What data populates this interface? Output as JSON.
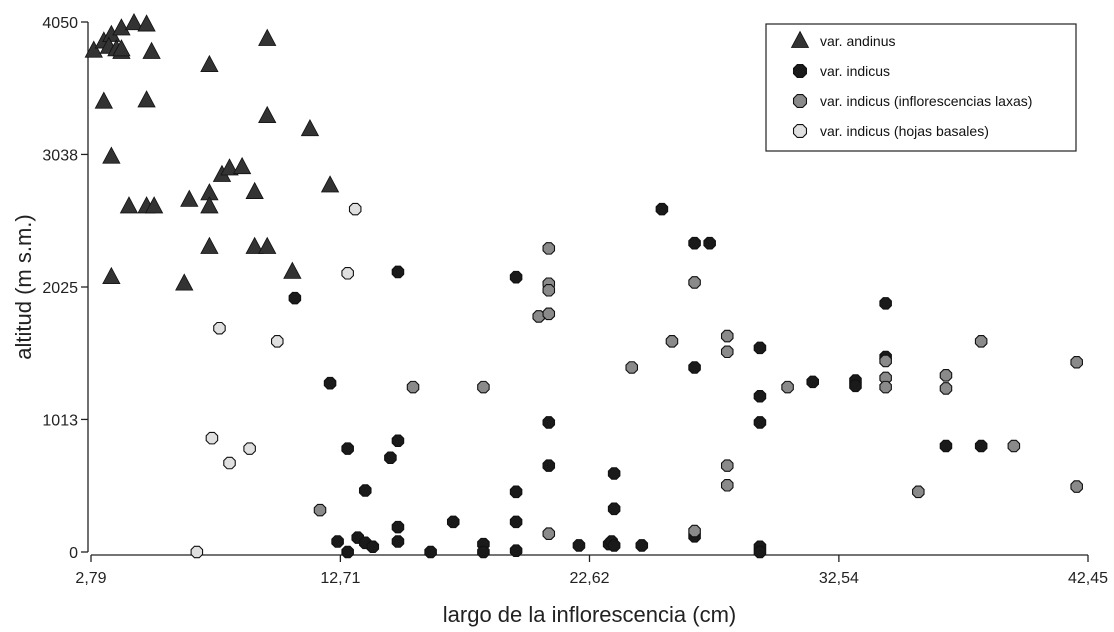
{
  "chart_data": {
    "type": "scatter",
    "xlabel": "largo de la inflorescencia (cm)",
    "ylabel": "altitud (m s.m.)",
    "xlim": [
      2.79,
      42.45
    ],
    "ylim": [
      0,
      4050
    ],
    "xticks": [
      "2,79",
      "12,71",
      "22,62",
      "32,54",
      "42,45"
    ],
    "xtick_values": [
      2.79,
      12.71,
      22.62,
      32.54,
      42.45
    ],
    "yticks": [
      "0",
      "1013",
      "2025",
      "3038",
      "4050"
    ],
    "ytick_values": [
      0,
      1013,
      2025,
      3038,
      4050
    ],
    "grid": false,
    "legend_position": "top-right",
    "series": [
      {
        "name": "var. andinus",
        "marker": "triangle",
        "color": "#333333",
        "points": [
          [
            2.9,
            3830
          ],
          [
            3.3,
            3900
          ],
          [
            3.6,
            3950
          ],
          [
            4.0,
            4000
          ],
          [
            4.5,
            4040
          ],
          [
            3.5,
            3860
          ],
          [
            3.8,
            3840
          ],
          [
            4.0,
            3820
          ],
          [
            4.0,
            3840
          ],
          [
            5.0,
            4030
          ],
          [
            5.2,
            3820
          ],
          [
            7.5,
            3720
          ],
          [
            9.8,
            3920
          ],
          [
            3.3,
            3440
          ],
          [
            5.0,
            3450
          ],
          [
            3.6,
            3020
          ],
          [
            4.3,
            2640
          ],
          [
            5.0,
            2640
          ],
          [
            5.3,
            2640
          ],
          [
            6.7,
            2690
          ],
          [
            7.5,
            2740
          ],
          [
            7.5,
            2640
          ],
          [
            8.0,
            2880
          ],
          [
            8.3,
            2930
          ],
          [
            8.8,
            2940
          ],
          [
            9.3,
            2750
          ],
          [
            9.8,
            3330
          ],
          [
            11.5,
            3230
          ],
          [
            12.3,
            2800
          ],
          [
            7.5,
            2330
          ],
          [
            9.3,
            2330
          ],
          [
            9.8,
            2330
          ],
          [
            3.6,
            2100
          ],
          [
            6.5,
            2050
          ],
          [
            10.8,
            2140
          ]
        ]
      },
      {
        "name": "var. indicus",
        "marker": "octagon",
        "color": "#1a1a1a",
        "points": [
          [
            10.9,
            1940
          ],
          [
            12.3,
            1290
          ],
          [
            15.0,
            2140
          ],
          [
            19.7,
            2100
          ],
          [
            13.0,
            790
          ],
          [
            13.7,
            470
          ],
          [
            14.7,
            720
          ],
          [
            15.0,
            850
          ],
          [
            12.6,
            80
          ],
          [
            13.0,
            0
          ],
          [
            13.4,
            110
          ],
          [
            13.7,
            70
          ],
          [
            14.0,
            40
          ],
          [
            15.0,
            80
          ],
          [
            15.0,
            190
          ],
          [
            16.3,
            0
          ],
          [
            17.2,
            230
          ],
          [
            18.4,
            60
          ],
          [
            18.4,
            0
          ],
          [
            19.7,
            230
          ],
          [
            19.7,
            460
          ],
          [
            19.7,
            10
          ],
          [
            21.0,
            990
          ],
          [
            21.0,
            660
          ],
          [
            22.2,
            50
          ],
          [
            23.4,
            60
          ],
          [
            23.5,
            80
          ],
          [
            23.6,
            50
          ],
          [
            23.6,
            330
          ],
          [
            23.6,
            600
          ],
          [
            24.7,
            50
          ],
          [
            25.5,
            2620
          ],
          [
            26.8,
            2360
          ],
          [
            27.4,
            2360
          ],
          [
            26.8,
            1410
          ],
          [
            26.8,
            120
          ],
          [
            29.4,
            1560
          ],
          [
            29.4,
            1190
          ],
          [
            29.4,
            990
          ],
          [
            29.4,
            40
          ],
          [
            29.4,
            0
          ],
          [
            31.5,
            1300
          ],
          [
            33.2,
            1310
          ],
          [
            33.2,
            1270
          ],
          [
            34.4,
            1900
          ],
          [
            34.4,
            1490
          ],
          [
            36.8,
            810
          ],
          [
            38.2,
            810
          ]
        ]
      },
      {
        "name": "var. indicus (inflorescencias laxas)",
        "marker": "octagon",
        "color": "#8a8a8a",
        "points": [
          [
            11.9,
            320
          ],
          [
            15.6,
            1260
          ],
          [
            18.4,
            1260
          ],
          [
            20.6,
            1800
          ],
          [
            21.0,
            2320
          ],
          [
            21.0,
            2050
          ],
          [
            21.0,
            1820
          ],
          [
            21.0,
            2000
          ],
          [
            21.0,
            140
          ],
          [
            24.3,
            1410
          ],
          [
            25.9,
            1610
          ],
          [
            26.8,
            2060
          ],
          [
            28.1,
            1650
          ],
          [
            28.1,
            1530
          ],
          [
            28.1,
            660
          ],
          [
            28.1,
            510
          ],
          [
            26.8,
            160
          ],
          [
            30.5,
            1260
          ],
          [
            34.4,
            1460
          ],
          [
            34.4,
            1330
          ],
          [
            34.4,
            1260
          ],
          [
            35.7,
            460
          ],
          [
            36.8,
            1350
          ],
          [
            36.8,
            1250
          ],
          [
            38.2,
            1610
          ],
          [
            39.5,
            810
          ],
          [
            42.0,
            1450
          ],
          [
            42.0,
            500
          ]
        ]
      },
      {
        "name": "var. indicus (hojas basales)",
        "marker": "octagon",
        "color": "#e0e0e0",
        "points": [
          [
            13.3,
            2620
          ],
          [
            13.0,
            2130
          ],
          [
            7.9,
            1710
          ],
          [
            10.2,
            1610
          ],
          [
            7.6,
            870
          ],
          [
            8.3,
            680
          ],
          [
            9.1,
            790
          ],
          [
            7.0,
            0
          ]
        ]
      }
    ]
  }
}
